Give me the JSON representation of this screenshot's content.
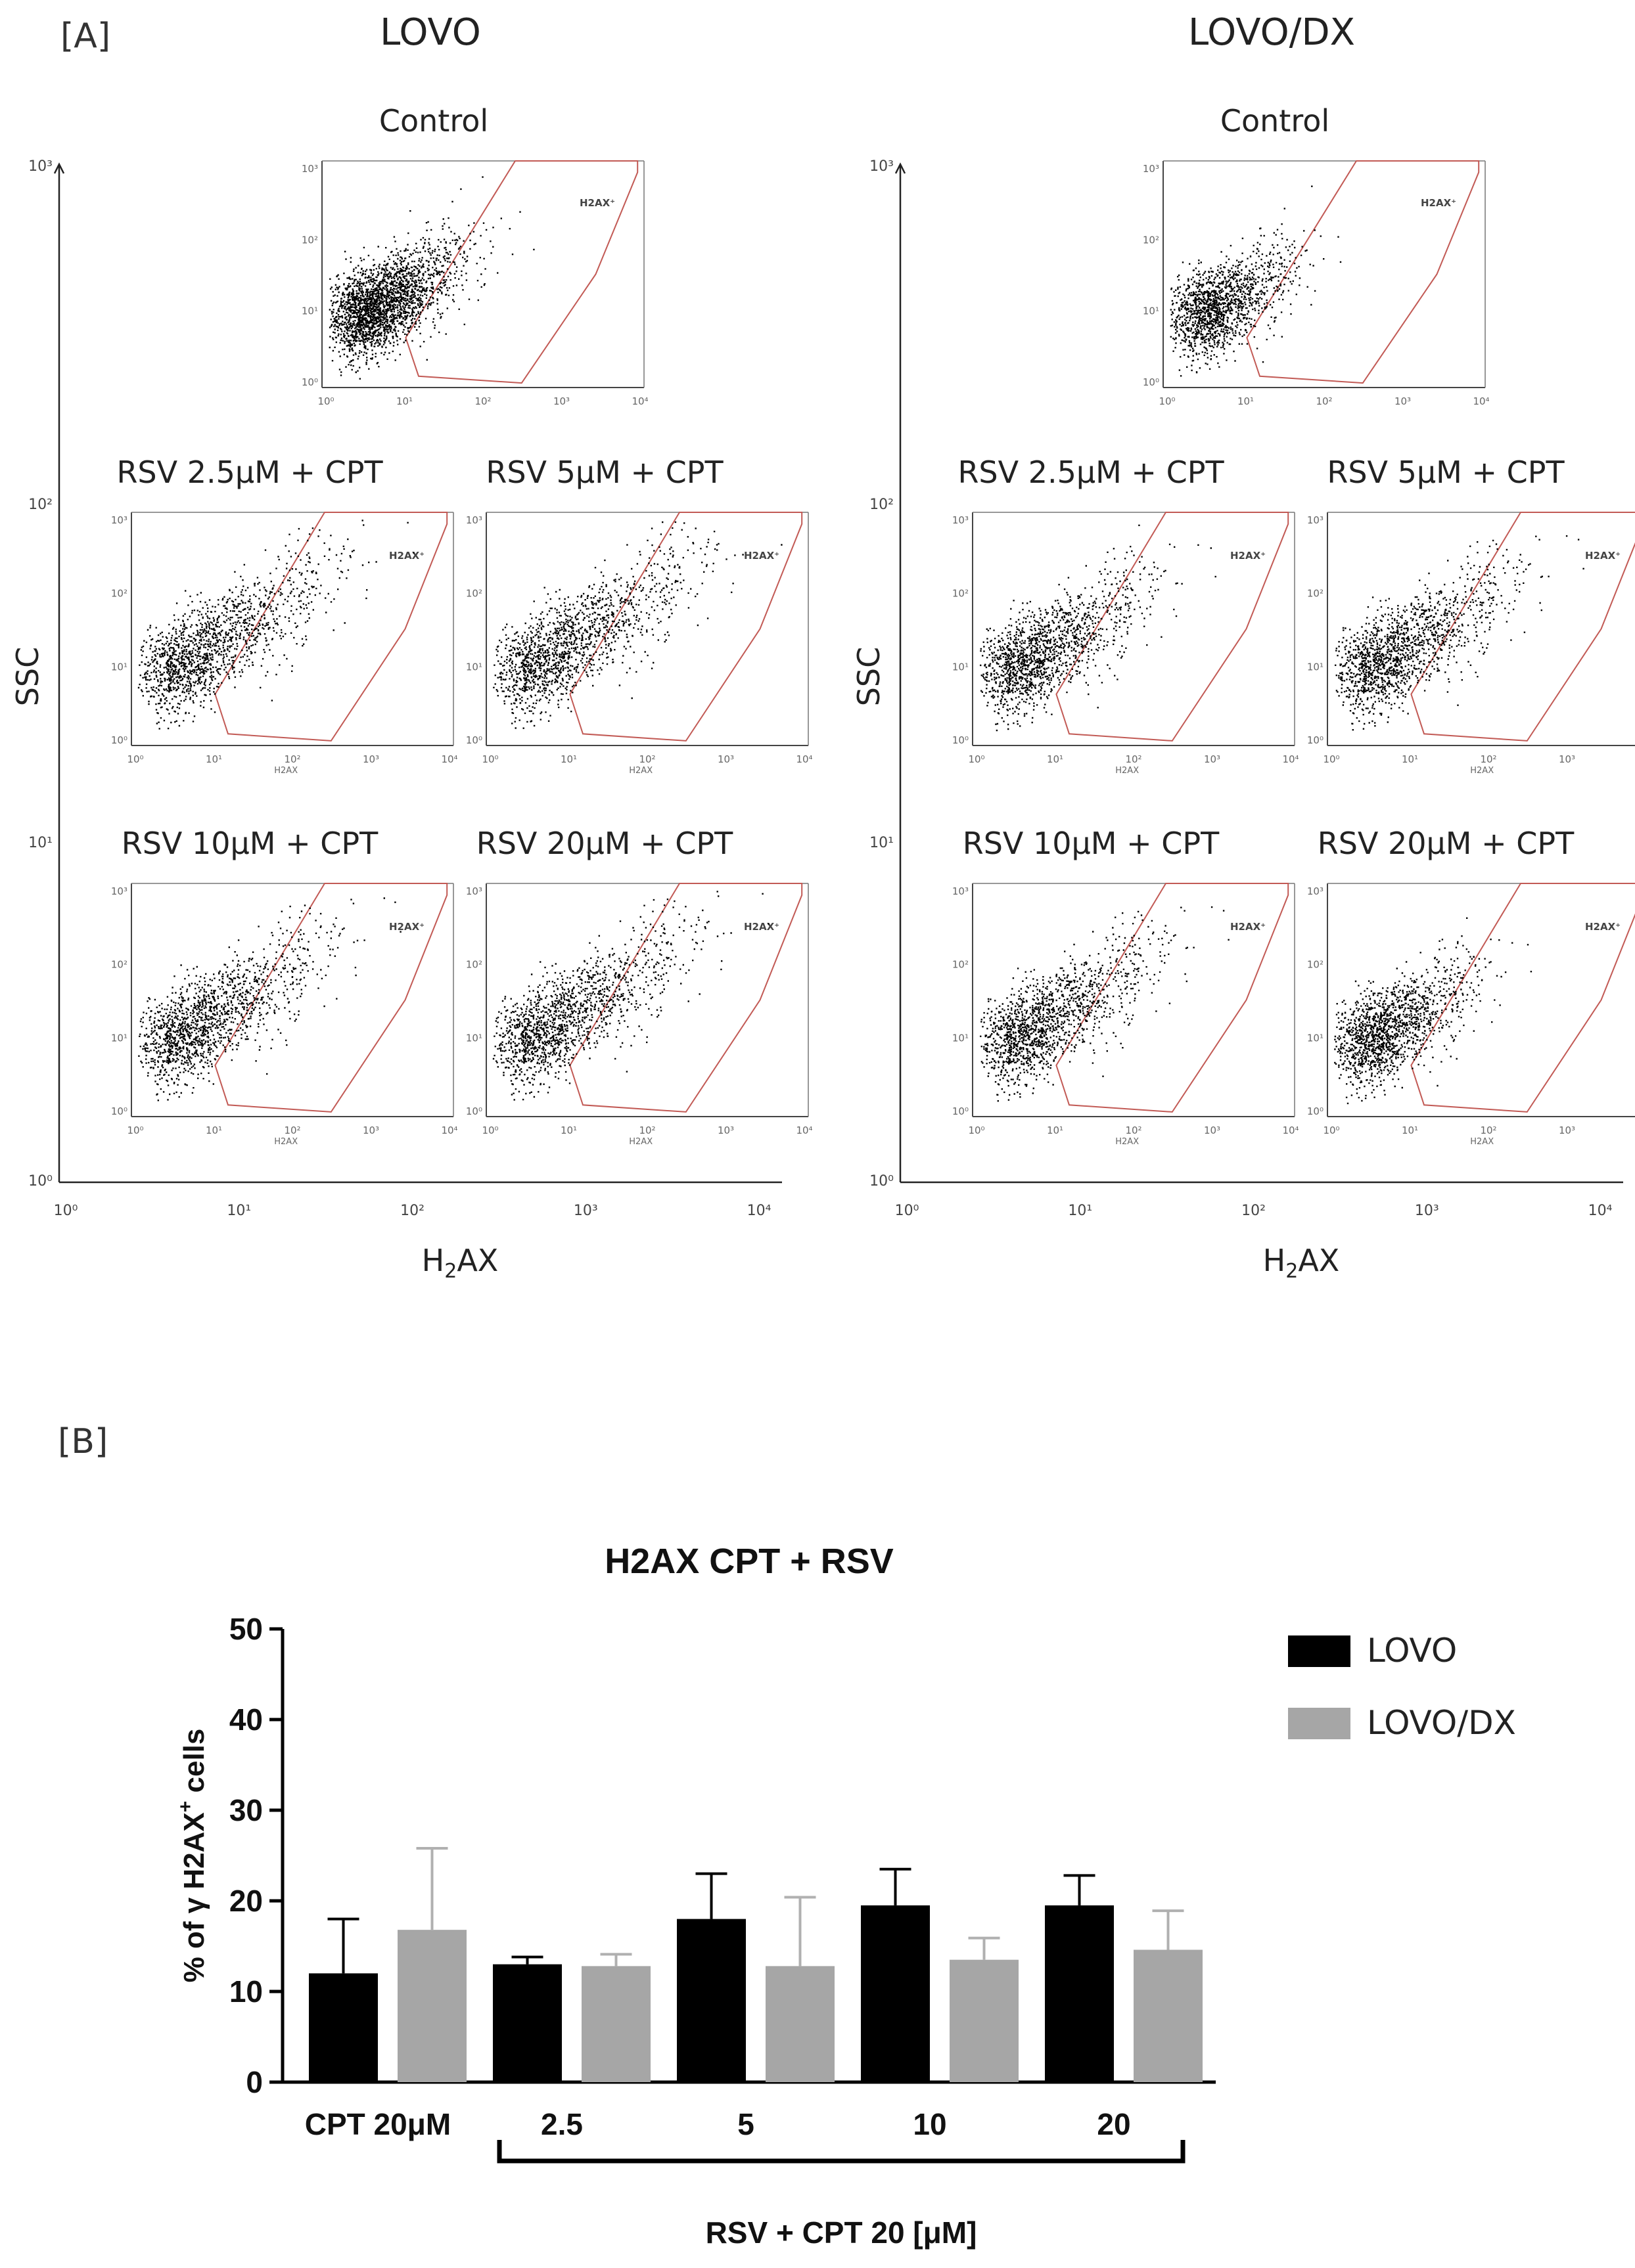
{
  "panel_a": {
    "label": "[A]",
    "cell_lines": [
      {
        "name": "LOVO",
        "y_axis_label": "SSC",
        "x_axis_label": "H2AX",
        "x_axis_label_main": "H",
        "x_axis_label_sub": "2",
        "x_axis_label_tail": "AX",
        "outer_ticks_y": [
          "10³",
          "10²",
          "10¹",
          "10⁰"
        ],
        "outer_ticks_x": [
          "10⁰",
          "10¹",
          "10²",
          "10³",
          "10⁴"
        ],
        "plots": [
          {
            "title": "Control",
            "gate_label": "H2AX⁺",
            "spread": 0.55
          },
          {
            "title": "RSV 2.5μM + CPT",
            "gate_label": "H2AX⁺",
            "x_label": "H2AX",
            "spread": 0.9
          },
          {
            "title": "RSV 5μM + CPT",
            "gate_label": "H2AX⁺",
            "x_label": "H2AX",
            "spread": 0.95
          },
          {
            "title": "RSV 10μM + CPT",
            "gate_label": "H2AX⁺",
            "x_label": "H2AX",
            "spread": 0.85
          },
          {
            "title": "RSV 20μM + CPT",
            "gate_label": "H2AX⁺",
            "x_label": "H2AX",
            "spread": 0.9
          }
        ]
      },
      {
        "name": "LOVO/DX",
        "y_axis_label": "SSC",
        "x_axis_label": "H2AX",
        "x_axis_label_main": "H",
        "x_axis_label_sub": "2",
        "x_axis_label_tail": "AX",
        "outer_ticks_y": [
          "10³",
          "10²",
          "10¹",
          "10⁰"
        ],
        "outer_ticks_x": [
          "10⁰",
          "10¹",
          "10²",
          "10³",
          "10⁴"
        ],
        "plots": [
          {
            "title": "Control",
            "gate_label": "H2AX⁺",
            "spread": 0.5
          },
          {
            "title": "RSV 2.5μM + CPT",
            "gate_label": "H2AX⁺",
            "x_label": "H2AX",
            "spread": 0.75
          },
          {
            "title": "RSV 5μM + CPT",
            "gate_label": "H2AX⁺",
            "x_label": "H2AX",
            "spread": 0.8
          },
          {
            "title": "RSV 10μM + CPT",
            "gate_label": "H2AX⁺",
            "x_label": "H2AX",
            "spread": 0.8
          },
          {
            "title": "RSV 20μM + CPT",
            "gate_label": "H2AX⁺",
            "x_label": "H2AX",
            "spread": 0.6
          }
        ]
      }
    ],
    "inner_ticks": [
      "10⁰",
      "10¹",
      "10²",
      "10³",
      "10⁴"
    ],
    "inner_ticks_y": [
      "10⁰",
      "10¹",
      "10²",
      "10³"
    ]
  },
  "panel_b": {
    "label": "[B]",
    "bracket_label": "RSV + CPT 20 [μM]"
  },
  "chart_data": {
    "type": "bar",
    "title": "H2AX CPT + RSV",
    "ylabel": "% of γ H2AX⁺ cells",
    "ylabel_main": "% of γ H2AX",
    "ylabel_sup": "+",
    "ylabel_tail": " cells",
    "xlabel": "RSV + CPT 20 [μM]",
    "categories": [
      "CPT 20μM",
      "2.5",
      "5",
      "10",
      "20"
    ],
    "ylim": [
      0,
      50
    ],
    "yticks": [
      0,
      10,
      20,
      30,
      40,
      50
    ],
    "series": [
      {
        "name": "LOVO",
        "color": "#000000",
        "values": [
          12,
          13,
          18,
          19.5,
          19.5
        ],
        "errors": [
          6,
          0.8,
          5,
          4,
          3.3
        ]
      },
      {
        "name": "LOVO/DX",
        "color": "#a6a6a6",
        "values": [
          16.8,
          12.8,
          12.8,
          13.5,
          14.6
        ],
        "errors": [
          9,
          1.3,
          7.6,
          2.4,
          4.3
        ]
      }
    ],
    "legend_position": "top-right"
  }
}
